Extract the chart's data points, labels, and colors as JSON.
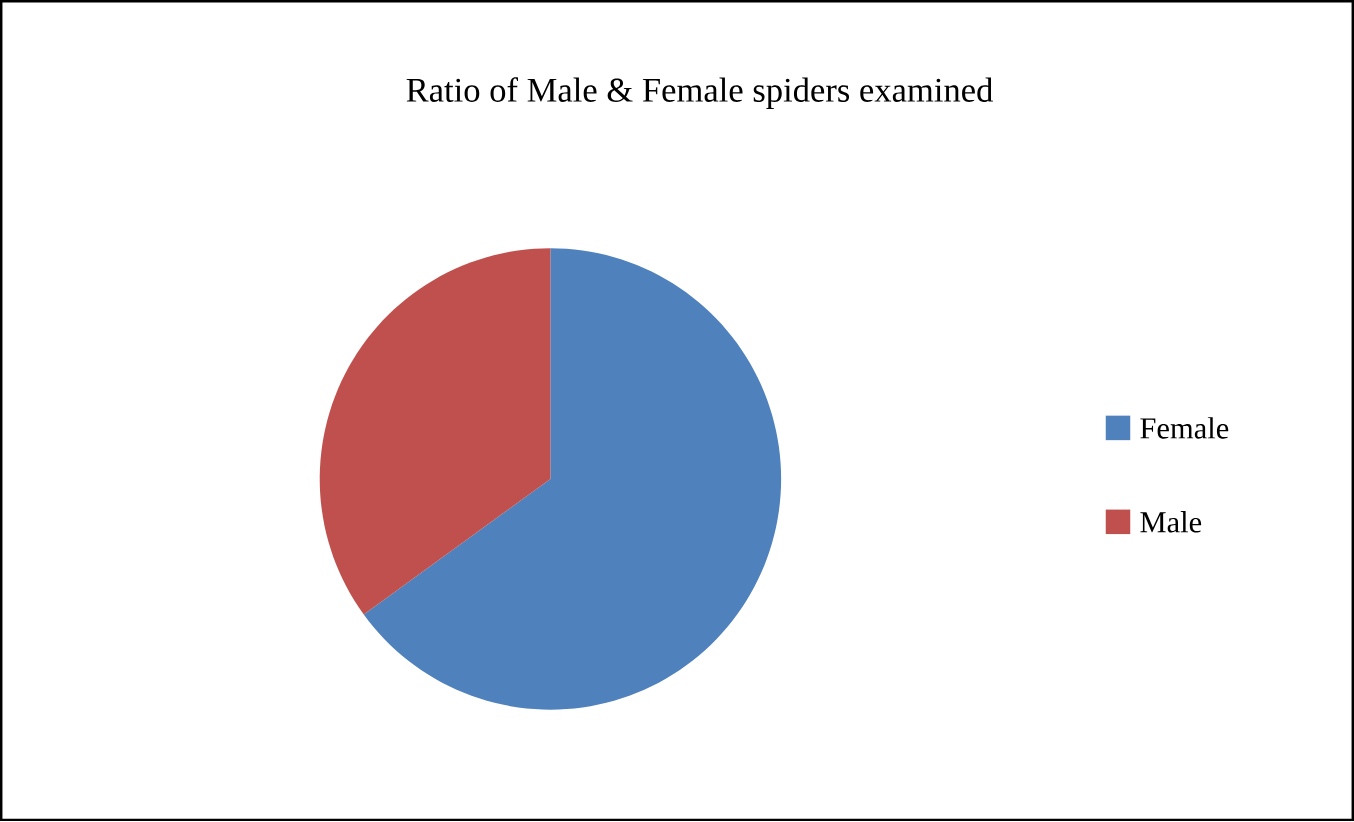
{
  "chart_data": {
    "type": "pie",
    "title": "Ratio of Male & Female spiders examined",
    "categories": [
      "Female",
      "Male"
    ],
    "values": [
      65,
      35
    ],
    "colors": [
      "#4f81bd",
      "#c0504d"
    ],
    "legend": "right"
  }
}
